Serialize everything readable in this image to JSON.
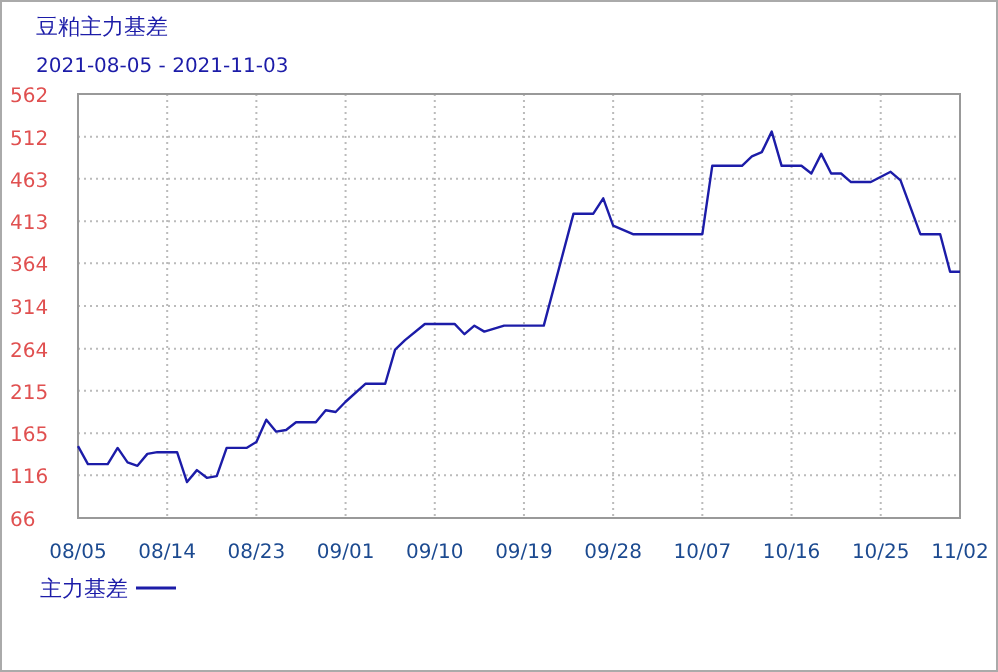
{
  "chart_data": {
    "type": "line",
    "title": "豆粕主力基差",
    "subtitle": "2021-08-05 - 2021-11-03",
    "x": [
      "2021-08-05",
      "2021-08-06",
      "2021-08-08",
      "2021-08-09",
      "2021-08-10",
      "2021-08-11",
      "2021-08-12",
      "2021-08-13",
      "2021-08-15",
      "2021-08-16",
      "2021-08-17",
      "2021-08-18",
      "2021-08-19",
      "2021-08-20",
      "2021-08-22",
      "2021-08-23",
      "2021-08-24",
      "2021-08-25",
      "2021-08-26",
      "2021-08-27",
      "2021-08-29",
      "2021-08-30",
      "2021-08-31",
      "2021-09-01",
      "2021-09-03",
      "2021-09-05",
      "2021-09-06",
      "2021-09-07",
      "2021-09-09",
      "2021-09-12",
      "2021-09-13",
      "2021-09-14",
      "2021-09-15",
      "2021-09-17",
      "2021-09-21",
      "2021-09-24",
      "2021-09-26",
      "2021-09-27",
      "2021-09-28",
      "2021-09-30",
      "2021-10-07",
      "2021-10-08",
      "2021-10-11",
      "2021-10-12",
      "2021-10-13",
      "2021-10-14",
      "2021-10-15",
      "2021-10-17",
      "2021-10-18",
      "2021-10-19",
      "2021-10-20",
      "2021-10-21",
      "2021-10-22",
      "2021-10-24",
      "2021-10-26",
      "2021-10-27",
      "2021-10-29",
      "2021-10-31",
      "2021-11-01",
      "2021-11-02"
    ],
    "series": [
      {
        "name": "主力基差",
        "color": "#1c1ca8",
        "values": [
          150,
          129,
          129,
          148,
          131,
          127,
          141,
          143,
          143,
          108,
          122,
          113,
          115,
          148,
          148,
          155,
          181,
          167,
          169,
          178,
          178,
          192,
          190,
          202,
          223,
          223,
          263,
          274,
          293,
          293,
          281,
          291,
          284,
          291,
          291,
          422,
          422,
          440,
          408,
          398,
          398,
          478,
          478,
          489,
          494,
          518,
          478,
          478,
          469,
          492,
          469,
          469,
          459,
          459,
          471,
          461,
          398,
          398,
          354,
          354
        ]
      }
    ],
    "xlim": [
      "2021-08-05",
      "2021-11-02"
    ],
    "xticks": [
      {
        "value": "2021-08-05",
        "label": "08/05"
      },
      {
        "value": "2021-08-14",
        "label": "08/14"
      },
      {
        "value": "2021-08-23",
        "label": "08/23"
      },
      {
        "value": "2021-09-01",
        "label": "09/01"
      },
      {
        "value": "2021-09-10",
        "label": "09/10"
      },
      {
        "value": "2021-09-19",
        "label": "09/19"
      },
      {
        "value": "2021-09-28",
        "label": "09/28"
      },
      {
        "value": "2021-10-07",
        "label": "10/07"
      },
      {
        "value": "2021-10-16",
        "label": "10/16"
      },
      {
        "value": "2021-10-25",
        "label": "10/25"
      },
      {
        "value": "2021-11-02",
        "label": "11/02"
      }
    ],
    "ylim": [
      66,
      562
    ],
    "yticks": [
      66,
      116,
      165,
      215,
      264,
      314,
      364,
      413,
      463,
      512,
      562
    ],
    "grid": true,
    "legend": "bottom left",
    "marker": "none",
    "line_style": "solid"
  }
}
